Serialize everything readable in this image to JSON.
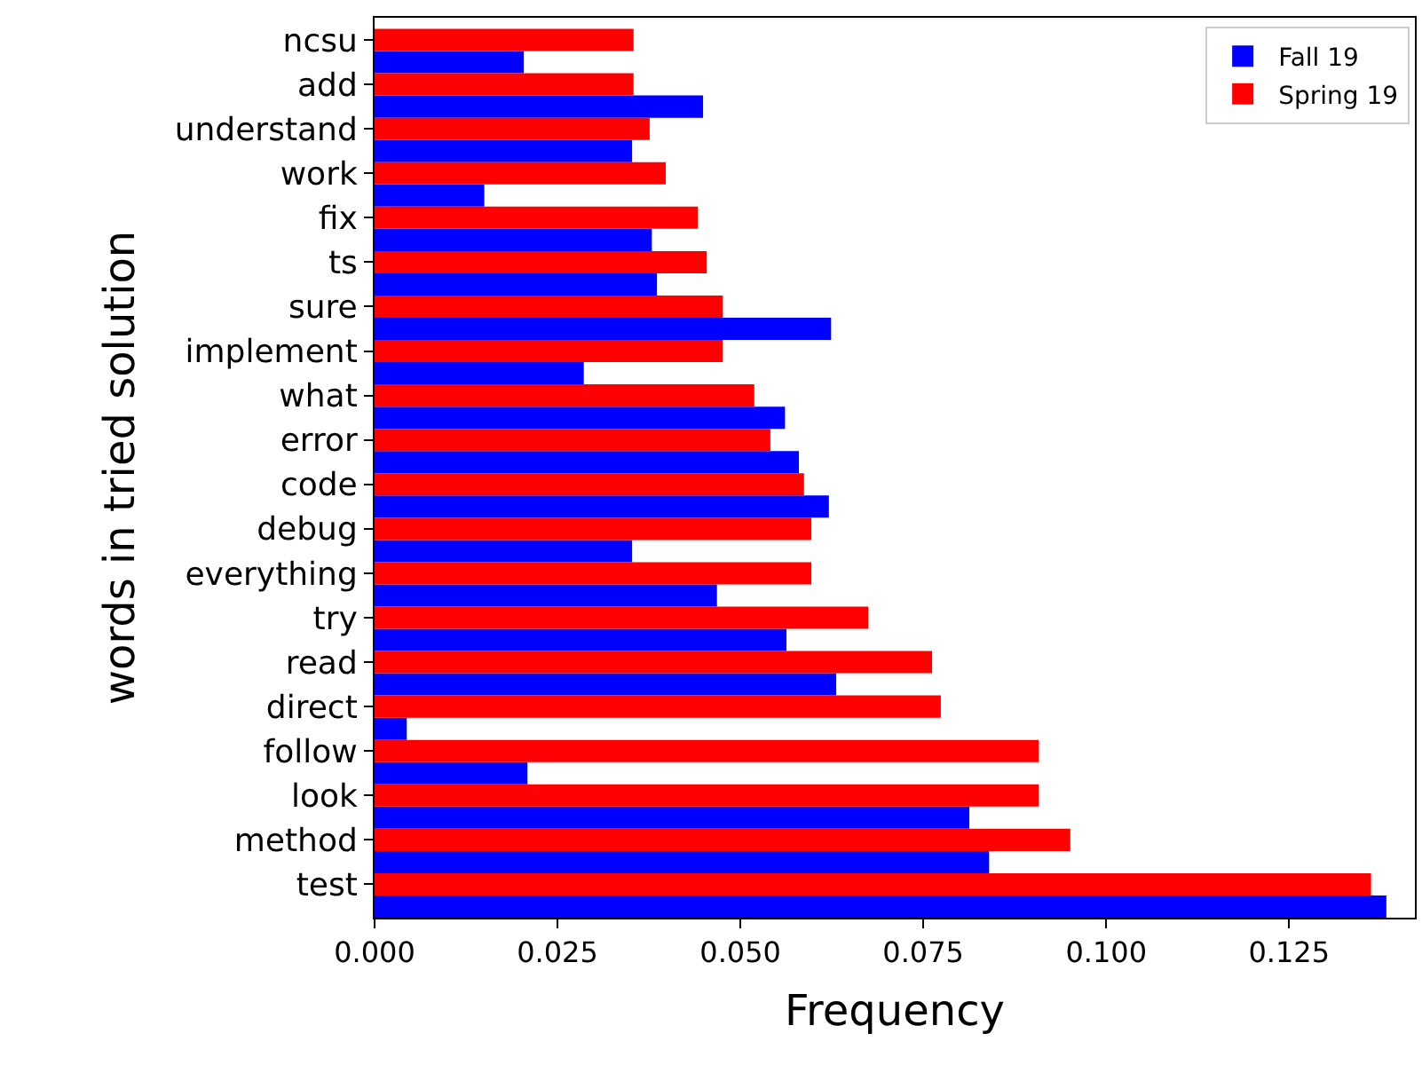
{
  "chart_data": {
    "type": "bar",
    "orientation": "horizontal",
    "xlabel": "Frequency",
    "ylabel": "words in tried solution",
    "categories": [
      "ncsu",
      "add",
      "understand",
      "work",
      "fix",
      "ts",
      "sure",
      "implement",
      "what",
      "error",
      "code",
      "debug",
      "everything",
      "try",
      "read",
      "direct",
      "follow",
      "look",
      "method",
      "test"
    ],
    "series": [
      {
        "name": "Fall 19",
        "color": "#0000ff",
        "values": [
          0.0204,
          0.0449,
          0.0352,
          0.015,
          0.0379,
          0.0386,
          0.0624,
          0.0286,
          0.0561,
          0.058,
          0.0621,
          0.0352,
          0.0468,
          0.0563,
          0.0631,
          0.0044,
          0.0209,
          0.0813,
          0.084,
          0.1383
        ]
      },
      {
        "name": "Spring 19",
        "color": "#ff0000",
        "values": [
          0.0354,
          0.0354,
          0.0376,
          0.0398,
          0.0442,
          0.0454,
          0.0476,
          0.0476,
          0.0519,
          0.0541,
          0.0587,
          0.0597,
          0.0597,
          0.0675,
          0.0762,
          0.0774,
          0.0908,
          0.0908,
          0.0951,
          0.1362
        ]
      }
    ],
    "xlim": [
      0,
      0.1422
    ],
    "xticks": [
      {
        "value": 0,
        "label": "0.000"
      },
      {
        "value": 0.025,
        "label": "0.025"
      },
      {
        "value": 0.05,
        "label": "0.050"
      },
      {
        "value": 0.075,
        "label": "0.075"
      },
      {
        "value": 0.1,
        "label": "0.100"
      },
      {
        "value": 0.125,
        "label": "0.125"
      }
    ],
    "legend": "top right"
  }
}
